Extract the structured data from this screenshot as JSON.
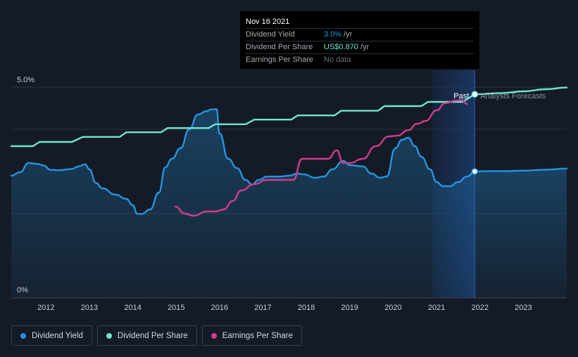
{
  "colors": {
    "background": "#151b26",
    "dividend_yield": "#2394df",
    "dividend_per_share": "#6ee6cf",
    "earnings_per_share": "#cf3d8c",
    "forecast_band": "#1a3a6b"
  },
  "tooltip": {
    "date": "Nov 16 2021",
    "rows": [
      {
        "label": "Dividend Yield",
        "value": "3.0%",
        "unit": "/yr",
        "value_color": "#2394df"
      },
      {
        "label": "Dividend Per Share",
        "value": "US$0.870",
        "unit": "/yr",
        "value_color": "#6ee6cf"
      },
      {
        "label": "Earnings Per Share",
        "value": "No data",
        "unit": "",
        "value_color": "#6b7079"
      }
    ]
  },
  "legend": [
    {
      "label": "Dividend Yield",
      "color": "#2394df"
    },
    {
      "label": "Dividend Per Share",
      "color": "#6ee6cf"
    },
    {
      "label": "Earnings Per Share",
      "color": "#cf3d8c"
    }
  ],
  "chart_data": {
    "type": "line",
    "xlim": [
      2011.2,
      2024.0
    ],
    "ylim": [
      0,
      5.0
    ],
    "y_tick_labels": [
      {
        "value": 5.0,
        "label": "5.0%"
      },
      {
        "value": 0,
        "label": "0%"
      }
    ],
    "x_ticks": [
      2012,
      2013,
      2014,
      2015,
      2016,
      2017,
      2018,
      2019,
      2020,
      2021,
      2022,
      2023
    ],
    "x_tick_labels": [
      "2012",
      "2013",
      "2014",
      "2015",
      "2016",
      "2017",
      "2018",
      "2019",
      "2020",
      "2021",
      "2022",
      "2023"
    ],
    "grid": "horizontal",
    "divider_x": 2021.88,
    "past_label": "Past",
    "forecast_label": "Analysts Forecasts",
    "series": [
      {
        "name": "Dividend Yield",
        "color": "#2394df",
        "area": true,
        "values": [
          [
            2011.2,
            2.9
          ],
          [
            2011.4,
            2.98
          ],
          [
            2011.6,
            3.2
          ],
          [
            2011.8,
            3.18
          ],
          [
            2011.95,
            3.14
          ],
          [
            2012.1,
            3.04
          ],
          [
            2012.3,
            3.03
          ],
          [
            2012.6,
            3.06
          ],
          [
            2012.75,
            3.12
          ],
          [
            2012.9,
            3.17
          ],
          [
            2013.0,
            3.05
          ],
          [
            2013.15,
            2.73
          ],
          [
            2013.3,
            2.6
          ],
          [
            2013.6,
            2.45
          ],
          [
            2013.85,
            2.35
          ],
          [
            2014.0,
            2.2
          ],
          [
            2014.1,
            2.0
          ],
          [
            2014.2,
            1.99
          ],
          [
            2014.4,
            2.1
          ],
          [
            2014.6,
            2.5
          ],
          [
            2014.75,
            3.1
          ],
          [
            2014.9,
            3.3
          ],
          [
            2015.1,
            3.55
          ],
          [
            2015.3,
            4.0
          ],
          [
            2015.5,
            4.35
          ],
          [
            2015.7,
            4.43
          ],
          [
            2015.8,
            4.47
          ],
          [
            2015.93,
            4.48
          ],
          [
            2016.0,
            3.9
          ],
          [
            2016.2,
            3.3
          ],
          [
            2016.4,
            3.08
          ],
          [
            2016.6,
            2.8
          ],
          [
            2016.75,
            2.69
          ],
          [
            2016.9,
            2.8
          ],
          [
            2017.1,
            2.88
          ],
          [
            2017.4,
            2.88
          ],
          [
            2017.6,
            2.9
          ],
          [
            2017.8,
            2.95
          ],
          [
            2017.95,
            2.93
          ],
          [
            2018.2,
            2.85
          ],
          [
            2018.4,
            2.88
          ],
          [
            2018.6,
            3.05
          ],
          [
            2018.85,
            3.25
          ],
          [
            2019.0,
            3.15
          ],
          [
            2019.3,
            3.12
          ],
          [
            2019.5,
            2.95
          ],
          [
            2019.7,
            2.85
          ],
          [
            2019.85,
            2.88
          ],
          [
            2020.05,
            3.55
          ],
          [
            2020.2,
            3.75
          ],
          [
            2020.35,
            3.8
          ],
          [
            2020.5,
            3.6
          ],
          [
            2020.65,
            3.35
          ],
          [
            2020.85,
            3.05
          ],
          [
            2021.0,
            2.75
          ],
          [
            2021.15,
            2.65
          ],
          [
            2021.3,
            2.65
          ],
          [
            2021.5,
            2.75
          ],
          [
            2021.7,
            2.88
          ],
          [
            2021.88,
            3.0
          ]
        ]
      },
      {
        "name": "Dividend Yield forecast",
        "color": "#2394df",
        "area": true,
        "values": [
          [
            2021.88,
            3.0
          ],
          [
            2022.2,
            3.01
          ],
          [
            2022.6,
            3.01
          ],
          [
            2023.0,
            3.02
          ],
          [
            2023.5,
            3.04
          ],
          [
            2024.0,
            3.07
          ]
        ]
      },
      {
        "name": "Dividend Per Share",
        "color": "#6ee6cf",
        "step": true,
        "values": [
          [
            2011.2,
            3.6
          ],
          [
            2011.7,
            3.6
          ],
          [
            2011.85,
            3.7
          ],
          [
            2012.6,
            3.7
          ],
          [
            2012.85,
            3.82
          ],
          [
            2013.7,
            3.82
          ],
          [
            2013.85,
            3.93
          ],
          [
            2014.65,
            3.93
          ],
          [
            2014.8,
            4.03
          ],
          [
            2015.75,
            4.03
          ],
          [
            2015.9,
            4.12
          ],
          [
            2016.6,
            4.12
          ],
          [
            2016.8,
            4.23
          ],
          [
            2017.65,
            4.23
          ],
          [
            2017.8,
            4.33
          ],
          [
            2018.65,
            4.33
          ],
          [
            2018.8,
            4.44
          ],
          [
            2019.65,
            4.44
          ],
          [
            2019.8,
            4.55
          ],
          [
            2020.65,
            4.55
          ],
          [
            2020.8,
            4.65
          ],
          [
            2021.6,
            4.65
          ],
          [
            2021.88,
            4.83
          ]
        ]
      },
      {
        "name": "Dividend Per Share forecast",
        "color": "#6ee6cf",
        "values": [
          [
            2021.88,
            4.83
          ],
          [
            2022.5,
            4.86
          ],
          [
            2023.0,
            4.9
          ],
          [
            2023.5,
            4.95
          ],
          [
            2024.0,
            4.99
          ]
        ]
      },
      {
        "name": "Earnings Per Share",
        "color": "#cf3d8c",
        "values": [
          [
            2014.98,
            2.17
          ],
          [
            2015.2,
            2.0
          ],
          [
            2015.4,
            1.95
          ],
          [
            2015.7,
            2.05
          ],
          [
            2015.9,
            2.05
          ],
          [
            2016.1,
            2.1
          ],
          [
            2016.3,
            2.3
          ],
          [
            2016.5,
            2.55
          ],
          [
            2016.8,
            2.7
          ],
          [
            2017.1,
            2.8
          ],
          [
            2017.4,
            2.8
          ],
          [
            2017.7,
            2.8
          ],
          [
            2017.9,
            3.3
          ],
          [
            2018.1,
            3.3
          ],
          [
            2018.5,
            3.3
          ],
          [
            2018.7,
            3.5
          ],
          [
            2018.85,
            3.2
          ],
          [
            2019.0,
            3.2
          ],
          [
            2019.3,
            3.3
          ],
          [
            2019.6,
            3.6
          ],
          [
            2019.9,
            3.83
          ],
          [
            2020.1,
            3.85
          ],
          [
            2020.35,
            3.98
          ],
          [
            2020.55,
            4.13
          ],
          [
            2020.75,
            4.2
          ],
          [
            2021.0,
            4.45
          ],
          [
            2021.2,
            4.62
          ],
          [
            2021.45,
            4.68
          ],
          [
            2021.58,
            4.7
          ],
          [
            2021.7,
            4.6
          ]
        ]
      }
    ]
  }
}
